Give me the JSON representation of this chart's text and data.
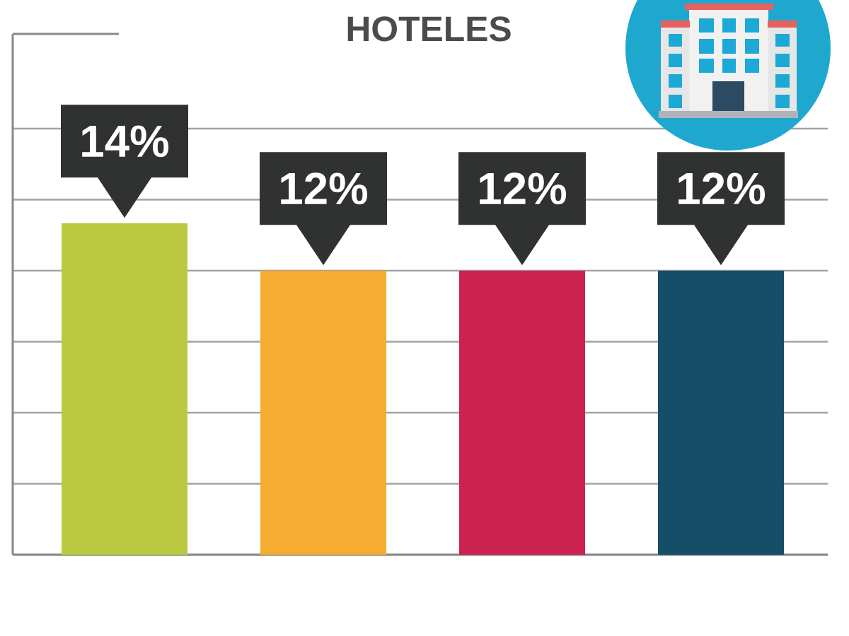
{
  "chart_data": {
    "type": "bar",
    "title": "HOTELES",
    "categories": [
      null,
      null,
      null,
      null
    ],
    "values": [
      14,
      12,
      12,
      12
    ],
    "colors": [
      "#bac940",
      "#f5ac30",
      "#cc2252",
      "#164e6a"
    ],
    "value_labels": [
      "14%",
      "12%",
      "12%",
      "12%"
    ],
    "ylim": [
      0,
      22
    ],
    "yticks": [
      {
        "value": 0,
        "label": null
      },
      {
        "value": 3,
        "label": null
      },
      {
        "value": 6,
        "label": null
      },
      {
        "value": 9,
        "label": null
      },
      {
        "value": 12,
        "label": null
      },
      {
        "value": 15,
        "label": null
      },
      {
        "value": 18,
        "label": null
      }
    ],
    "grid": "y"
  }
}
